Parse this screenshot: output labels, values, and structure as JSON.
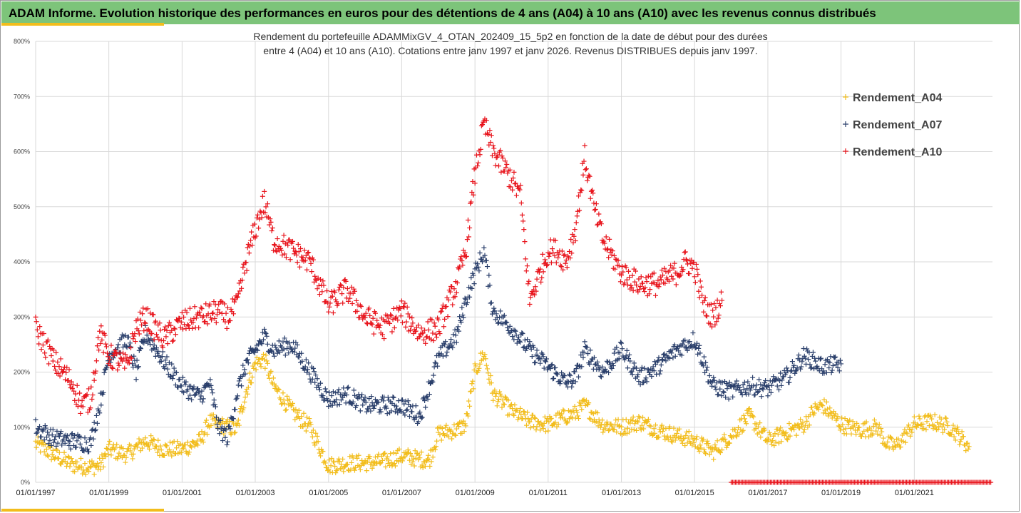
{
  "header": {
    "title": "ADAM Informe. Evolution historique des performances en euros pour des détentions de 4 ans (A04) à 10 ans (A10) avec les revenus connus distribués"
  },
  "colors": {
    "header_bg": "#7dc47a",
    "accent": "#f2bd1c",
    "A04": "#f2bd1c",
    "A07": "#2a3f6b",
    "A10": "#e8141c"
  },
  "chart_data": {
    "type": "scatter",
    "title_lines": [
      "Rendement du portefeuille ADAMMixGV_4_OTAN_202409_15_5p2  en fonction de la date de début pour des durées",
      "entre 4 (A04) et 10 ans (A10). Cotations entre janv 1997 et janv 2026. Revenus DISTRIBUES depuis janv 1997."
    ],
    "y_ticks": [
      "0%",
      "100%",
      "200%",
      "300%",
      "400%",
      "500%",
      "600%",
      "700%",
      "800%"
    ],
    "ylim": [
      0,
      800
    ],
    "x_ticks": [
      "01/01/1997",
      "01/01/1999",
      "01/01/2001",
      "01/01/2003",
      "01/01/2005",
      "01/01/2007",
      "01/01/2009",
      "01/01/2011",
      "01/01/2013",
      "01/01/2015",
      "01/01/2017",
      "01/01/2019",
      "01/01/2021"
    ],
    "xlim": [
      "1997-01-01",
      "2023-02-20"
    ],
    "grid": true,
    "legend_position": "top-right",
    "marker": "+",
    "series": [
      {
        "name": "Rendement_A04",
        "color": "#f2bd1c",
        "x": [
          "1997-01-01",
          "1997-07-01",
          "1998-01-01",
          "1998-07-01",
          "1998-10-01",
          "1999-01-01",
          "1999-07-01",
          "2000-01-01",
          "2000-07-01",
          "2001-01-01",
          "2001-07-01",
          "2001-10-01",
          "2002-04-01",
          "2002-07-01",
          "2002-10-01",
          "2003-01-01",
          "2003-04-01",
          "2003-07-01",
          "2004-01-01",
          "2004-07-01",
          "2005-01-01",
          "2005-07-01",
          "2006-01-01",
          "2006-07-01",
          "2007-01-01",
          "2007-07-01",
          "2007-10-01",
          "2008-01-01",
          "2008-07-01",
          "2008-10-01",
          "2009-01-01",
          "2009-04-01",
          "2009-07-01",
          "2010-01-01",
          "2010-07-01",
          "2011-01-01",
          "2011-07-01",
          "2011-10-01",
          "2012-01-01",
          "2012-07-01",
          "2013-01-01",
          "2013-07-01",
          "2014-01-01",
          "2014-07-01",
          "2015-01-01",
          "2015-07-01",
          "2015-10-01",
          "2016-01-01",
          "2016-07-01",
          "2017-01-01",
          "2017-07-01",
          "2018-01-01",
          "2018-04-01",
          "2018-07-01",
          "2019-01-01",
          "2019-07-01",
          "2020-01-01",
          "2020-04-01",
          "2020-07-01",
          "2021-01-01",
          "2021-07-01",
          "2022-01-01",
          "2022-07-01"
        ],
        "values": [
          70,
          50,
          32,
          28,
          30,
          60,
          50,
          75,
          60,
          60,
          75,
          110,
          100,
          95,
          165,
          215,
          225,
          175,
          130,
          100,
          30,
          35,
          35,
          38,
          48,
          42,
          40,
          88,
          95,
          105,
          200,
          235,
          160,
          130,
          110,
          105,
          120,
          125,
          140,
          105,
          100,
          110,
          95,
          85,
          75,
          55,
          70,
          85,
          120,
          75,
          90,
          105,
          130,
          140,
          105,
          95,
          100,
          70,
          65,
          105,
          110,
          100,
          65
        ],
        "jitter": 15
      },
      {
        "name": "Rendement_A07",
        "color": "#2a3f6b",
        "x": [
          "1997-01-01",
          "1997-07-01",
          "1998-01-01",
          "1998-07-01",
          "1998-10-01",
          "1999-01-01",
          "1999-07-01",
          "1999-10-01",
          "2000-01-01",
          "2000-07-01",
          "2001-01-01",
          "2001-07-01",
          "2001-10-01",
          "2002-01-01",
          "2002-04-01",
          "2002-07-01",
          "2002-10-01",
          "2003-01-01",
          "2003-04-01",
          "2003-07-01",
          "2004-01-01",
          "2004-07-01",
          "2005-01-01",
          "2005-07-01",
          "2006-01-01",
          "2006-07-01",
          "2007-01-01",
          "2007-07-01",
          "2008-01-01",
          "2008-07-01",
          "2008-10-01",
          "2009-01-01",
          "2009-04-01",
          "2009-07-01",
          "2010-01-01",
          "2010-07-01",
          "2011-01-01",
          "2011-07-01",
          "2011-10-01",
          "2012-01-01",
          "2012-07-01",
          "2013-01-01",
          "2013-07-01",
          "2014-01-01",
          "2014-07-01",
          "2015-01-01",
          "2015-07-01",
          "2016-01-01",
          "2016-07-01",
          "2017-01-01",
          "2017-07-01",
          "2018-01-01",
          "2018-07-01",
          "2019-01-01"
        ],
        "values": [
          100,
          80,
          75,
          70,
          140,
          230,
          260,
          200,
          270,
          220,
          175,
          155,
          180,
          100,
          80,
          160,
          215,
          240,
          265,
          240,
          250,
          200,
          150,
          160,
          140,
          140,
          140,
          120,
          225,
          265,
          330,
          380,
          420,
          310,
          280,
          240,
          210,
          180,
          190,
          240,
          200,
          240,
          190,
          210,
          240,
          260,
          175,
          165,
          175,
          170,
          190,
          230,
          210,
          215
        ],
        "jitter": 16
      },
      {
        "name": "Rendement_A10",
        "color": "#e8141c",
        "x": [
          "1997-01-01",
          "1997-04-01",
          "1997-07-01",
          "1997-10-01",
          "1998-01-01",
          "1998-04-01",
          "1998-07-01",
          "1998-10-01",
          "1999-01-01",
          "1999-07-01",
          "1999-10-01",
          "2000-01-01",
          "2000-07-01",
          "2001-01-01",
          "2001-07-01",
          "2002-01-01",
          "2002-04-01",
          "2002-07-01",
          "2002-10-01",
          "2003-01-01",
          "2003-04-01",
          "2003-07-01",
          "2004-01-01",
          "2004-07-01",
          "2005-01-01",
          "2005-07-01",
          "2006-01-01",
          "2006-07-01",
          "2007-01-01",
          "2007-07-01",
          "2008-01-01",
          "2008-07-01",
          "2008-10-01",
          "2009-01-01",
          "2009-04-01",
          "2009-07-01",
          "2010-01-01",
          "2010-04-01",
          "2010-07-01",
          "2011-01-01",
          "2011-04-01",
          "2011-07-01",
          "2011-10-01",
          "2012-01-01",
          "2012-04-01",
          "2012-07-01",
          "2013-01-01",
          "2013-07-01",
          "2014-01-01",
          "2014-07-01",
          "2014-10-01",
          "2015-01-01",
          "2015-04-01",
          "2015-07-01",
          "2015-10-01"
        ],
        "values": [
          280,
          250,
          220,
          200,
          180,
          140,
          150,
          270,
          230,
          210,
          280,
          300,
          260,
          290,
          300,
          310,
          300,
          320,
          400,
          460,
          510,
          440,
          420,
          400,
          320,
          350,
          300,
          280,
          310,
          270,
          280,
          360,
          420,
          560,
          650,
          600,
          550,
          520,
          330,
          420,
          420,
          400,
          460,
          590,
          500,
          440,
          380,
          360,
          360,
          380,
          400,
          390,
          320,
          300,
          330
        ],
        "jitter": 22
      }
    ],
    "zero_marks": {
      "color": "#e8141c",
      "from": "2016-01-01",
      "to": "2023-02-15"
    }
  }
}
